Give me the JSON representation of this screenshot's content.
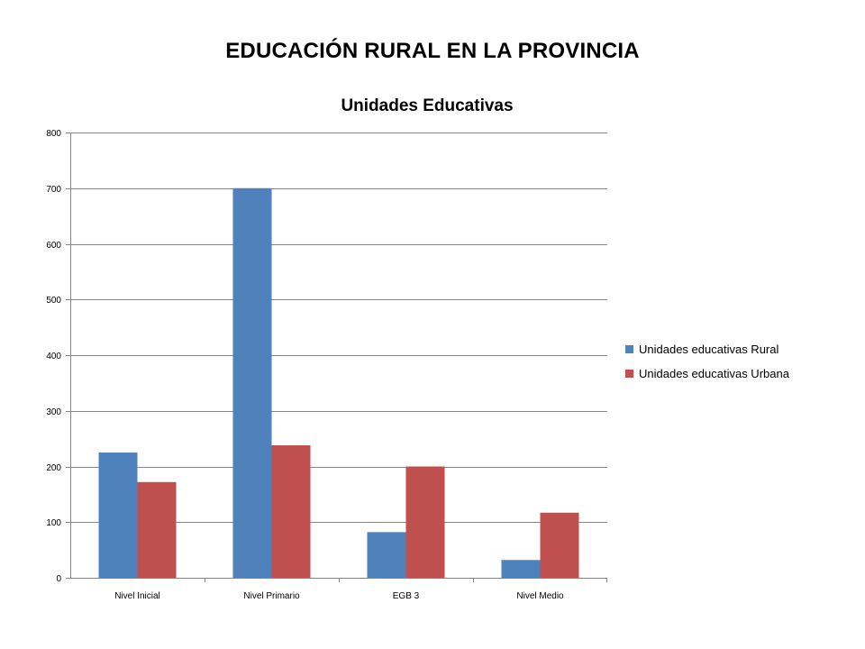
{
  "slide": {
    "title": "EDUCACIÓN RURAL EN LA PROVINCIA"
  },
  "chart_data": {
    "type": "bar",
    "title": "Unidades Educativas",
    "xlabel": "",
    "ylabel": "",
    "categories": [
      "Nivel Inicial",
      "Nivel Primario",
      "EGB 3",
      "Nivel Medio"
    ],
    "series": [
      {
        "name": "Unidades educativas Rural",
        "color": "#4F81BD",
        "values": [
          225,
          700,
          82,
          32
        ]
      },
      {
        "name": "Unidades educativas Urbana",
        "color": "#C0504D",
        "values": [
          172,
          238,
          200,
          117
        ]
      }
    ],
    "ylim": [
      0,
      800
    ],
    "yticks": [
      0,
      100,
      200,
      300,
      400,
      500,
      600,
      700,
      800
    ],
    "grid": true,
    "legend": "right"
  }
}
